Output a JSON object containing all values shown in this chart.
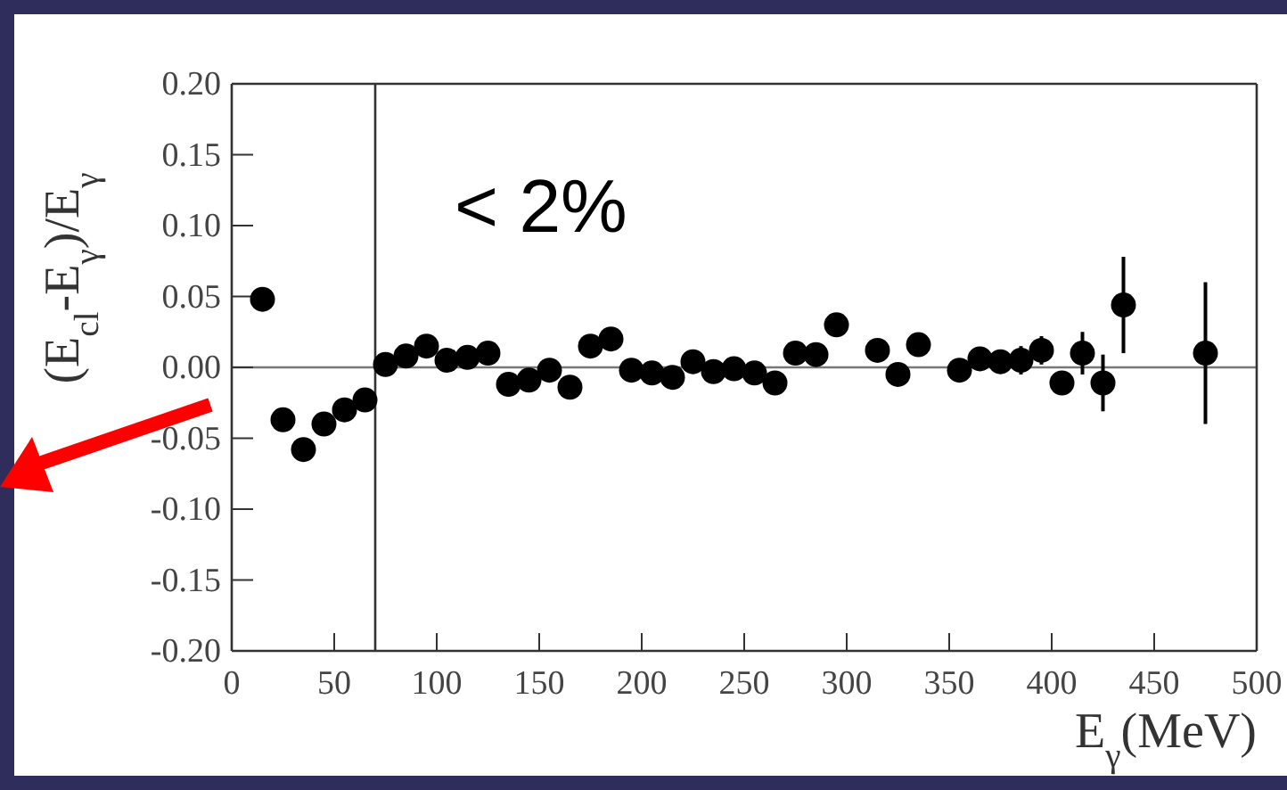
{
  "chart_data": {
    "type": "scatter",
    "xlabel": "E$_{γ}$(MeV)",
    "ylabel": "(E$_{cl}$-E$_{γ}$)/E$_{γ}$",
    "x": [
      15,
      25,
      35,
      45,
      55,
      65,
      75,
      85,
      95,
      105,
      115,
      125,
      135,
      145,
      155,
      165,
      175,
      185,
      195,
      205,
      215,
      225,
      235,
      245,
      255,
      265,
      275,
      285,
      295,
      315,
      325,
      335,
      355,
      365,
      375,
      385,
      395,
      405,
      415,
      425,
      435,
      475
    ],
    "series": [
      {
        "color": "#000000",
        "values": [
          0.048,
          -0.037,
          -0.058,
          -0.04,
          -0.03,
          -0.023,
          0.002,
          0.008,
          0.015,
          0.005,
          0.007,
          0.01,
          -0.012,
          -0.009,
          -0.002,
          -0.014,
          0.015,
          0.02,
          -0.002,
          -0.004,
          -0.007,
          0.004,
          -0.003,
          -0.001,
          -0.004,
          -0.011,
          0.01,
          0.009,
          0.03,
          0.012,
          -0.005,
          0.016,
          -0.002,
          0.006,
          0.004,
          0.005,
          0.012,
          -0.011,
          0.01,
          -0.011,
          0.044,
          0.01
        ],
        "errors": [
          0.006,
          0.005,
          0.005,
          0.005,
          0.005,
          0.005,
          0.004,
          0.004,
          0.004,
          0.004,
          0.004,
          0.004,
          0.004,
          0.004,
          0.004,
          0.004,
          0.004,
          0.004,
          0.004,
          0.004,
          0.004,
          0.004,
          0.004,
          0.004,
          0.004,
          0.004,
          0.006,
          0.006,
          0.008,
          0.006,
          0.006,
          0.008,
          0.006,
          0.006,
          0.006,
          0.01,
          0.01,
          0.008,
          0.015,
          0.02,
          0.034,
          0.05
        ]
      }
    ],
    "xlim": [
      0,
      500
    ],
    "xticks": [
      0,
      50,
      100,
      150,
      200,
      250,
      300,
      350,
      400,
      450,
      500
    ],
    "ylim": [
      -0.2,
      0.2
    ],
    "yticks": [
      {
        "value": -0.2,
        "label": "-0.20"
      },
      {
        "value": -0.15,
        "label": "-0.15"
      },
      {
        "value": -0.1,
        "label": "-0.10"
      },
      {
        "value": -0.05,
        "label": "-0.05"
      },
      {
        "value": 0,
        "label": "0.00"
      },
      {
        "value": 0.05,
        "label": "0.05"
      },
      {
        "value": 0.1,
        "label": "0.10"
      },
      {
        "value": 0.15,
        "label": "0.15"
      },
      {
        "value": 0.2,
        "label": "0.20"
      }
    ],
    "ref_lines": [
      {
        "axis": "y",
        "value": 0,
        "color": "#777777"
      },
      {
        "axis": "x",
        "value": 70,
        "color": "#333333"
      }
    ],
    "annotations": [
      "< 2%"
    ],
    "marker": "circle",
    "grid": false
  }
}
